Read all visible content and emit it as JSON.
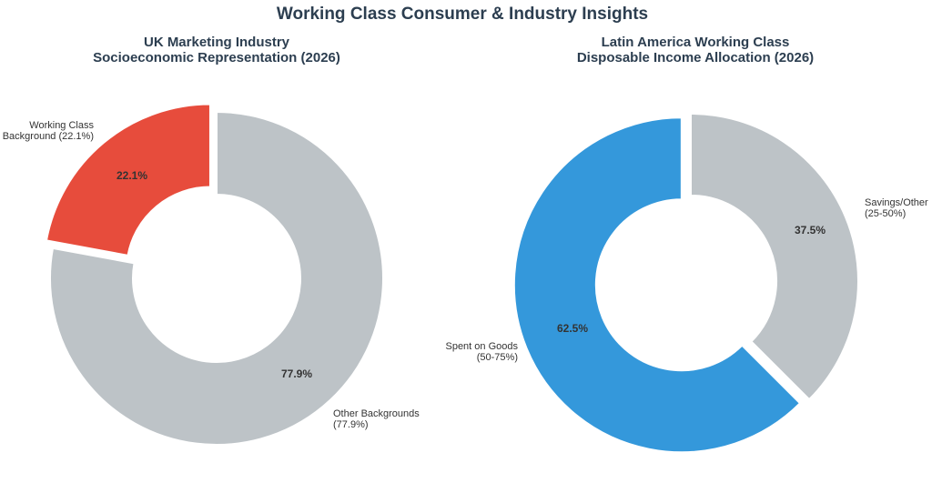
{
  "figure": {
    "title": "Working Class Consumer & Industry Insights"
  },
  "chart_data": [
    {
      "type": "pie",
      "title_lines": [
        "UK Marketing Industry",
        "Socioeconomic Representation (2026)"
      ],
      "slices": [
        {
          "label_lines": [
            "Working Class",
            "Background (22.1%)"
          ],
          "value": 22.1,
          "pct_label": "22.1%",
          "color": "#e74c3c",
          "exploded": true
        },
        {
          "label_lines": [
            "Other Backgrounds",
            "(77.9%)"
          ],
          "value": 77.9,
          "pct_label": "77.9%",
          "color": "#bdc3c7",
          "exploded": false
        }
      ]
    },
    {
      "type": "pie",
      "title_lines": [
        "Latin America Working Class",
        "Disposable Income Allocation (2026)"
      ],
      "slices": [
        {
          "label_lines": [
            "Spent on Goods",
            "(50-75%)"
          ],
          "value": 62.5,
          "pct_label": "62.5%",
          "color": "#3498db",
          "exploded": true
        },
        {
          "label_lines": [
            "Savings/Other",
            "(25-50%)"
          ],
          "value": 37.5,
          "pct_label": "37.5%",
          "color": "#bdc3c7",
          "exploded": false
        }
      ]
    }
  ]
}
